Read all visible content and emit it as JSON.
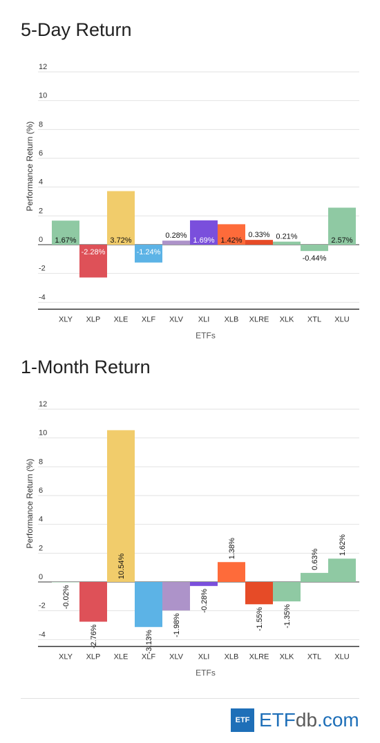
{
  "chart_data": [
    {
      "type": "bar",
      "title": "5-Day Return",
      "xlabel": "ETFs",
      "ylabel": "Performance Return (%)",
      "ylim": [
        -4,
        12
      ],
      "yticks": [
        "12",
        "10",
        "8",
        "6",
        "4",
        "2",
        "0",
        "-2",
        "-4"
      ],
      "categories": [
        "XLY",
        "XLP",
        "XLE",
        "XLF",
        "XLV",
        "XLI",
        "XLB",
        "XLRE",
        "XLK",
        "XTL",
        "XLU"
      ],
      "values": [
        1.67,
        -2.28,
        3.72,
        -1.24,
        0.28,
        1.69,
        1.42,
        0.33,
        0.21,
        -0.44,
        2.57
      ],
      "labels": [
        "1.67%",
        "-2.28%",
        "3.72%",
        "-1.24%",
        "0.28%",
        "1.69%",
        "1.42%",
        "0.33%",
        "0.21%",
        "-0.44%",
        "2.57%"
      ],
      "colors": [
        "#8fc9a3",
        "#de5158",
        "#f1cc6b",
        "#5cb3e6",
        "#ad93c9",
        "#7a4fdc",
        "#fe6b3a",
        "#e64b27",
        "#8fc9a3",
        "#8fc9a3",
        "#8fc9a3"
      ],
      "grid": true,
      "legend": "none"
    },
    {
      "type": "bar",
      "title": "1-Month Return",
      "xlabel": "ETFs",
      "ylabel": "Performance Return (%)",
      "ylim": [
        -4,
        12
      ],
      "yticks": [
        "12",
        "10",
        "8",
        "6",
        "4",
        "2",
        "0",
        "-2",
        "-4"
      ],
      "categories": [
        "XLY",
        "XLP",
        "XLE",
        "XLF",
        "XLV",
        "XLI",
        "XLB",
        "XLRE",
        "XLK",
        "XTL",
        "XLU"
      ],
      "values": [
        -0.02,
        -2.76,
        10.54,
        -3.13,
        -1.98,
        -0.28,
        1.38,
        -1.55,
        -1.35,
        0.63,
        1.62
      ],
      "labels": [
        "-0.02%",
        "-2.76%",
        "10.54%",
        "-3.13%",
        "-1.98%",
        "-0.28%",
        "1.38%",
        "-1.55%",
        "-1.35%",
        "0.63%",
        "1.62%"
      ],
      "colors": [
        "#8fc9a3",
        "#de5158",
        "#f1cc6b",
        "#5cb3e6",
        "#ad93c9",
        "#7a4fdc",
        "#fe6b3a",
        "#e64b27",
        "#8fc9a3",
        "#8fc9a3",
        "#8fc9a3"
      ],
      "grid": true,
      "legend": "none"
    }
  ],
  "brand": {
    "box_text": "ETF",
    "etf": "ETF",
    "db": "db",
    "com": ".com"
  }
}
